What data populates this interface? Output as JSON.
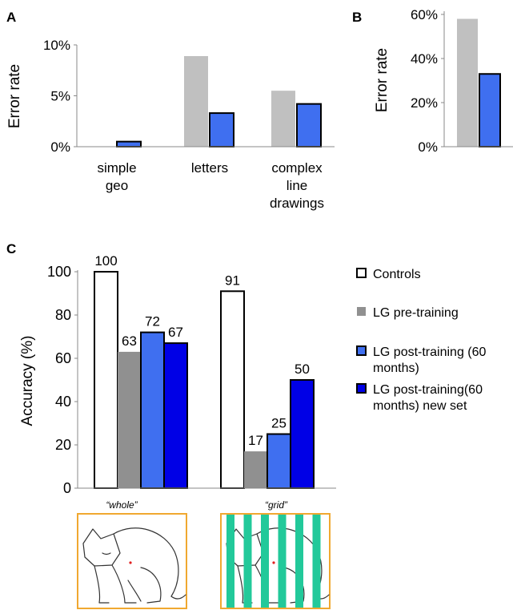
{
  "panels": {
    "a_letter": "A",
    "b_letter": "B",
    "c_letter": "C"
  },
  "images": {
    "whole_caption": "“whole”",
    "grid_caption": "“grid”"
  },
  "colors": {
    "pre_training_light": "#c0c0c0",
    "pre_training": "#909090",
    "post_training": "#3f6ff0",
    "post_training_new": "#0000e6",
    "controls": "#ffffff",
    "frame": "#f0a830",
    "stripes": "#22c99a"
  },
  "chart_data": [
    {
      "id": "A",
      "type": "bar",
      "ylabel": "Error rate",
      "ylim": [
        0,
        10
      ],
      "yticks": [
        "0%",
        "5%",
        "10%"
      ],
      "categories": [
        "simple geo",
        "letters",
        "complex line drawings"
      ],
      "category_lines": [
        [
          "simple",
          "geo"
        ],
        [
          "letters"
        ],
        [
          "complex",
          "line",
          "drawings"
        ]
      ],
      "series": [
        {
          "values": [
            0,
            8.9,
            5.5
          ]
        },
        {
          "values": [
            0.5,
            3.3,
            4.2
          ]
        }
      ]
    },
    {
      "id": "B",
      "type": "bar",
      "ylabel": "Error rate",
      "ylim": [
        0,
        60
      ],
      "yticks": [
        "0%",
        "20%",
        "40%",
        "60%"
      ],
      "categories": [
        ""
      ],
      "series": [
        {
          "values": [
            58
          ]
        },
        {
          "values": [
            33
          ]
        }
      ]
    },
    {
      "id": "C",
      "type": "bar",
      "ylabel": "Accuracy (%)",
      "ylim": [
        0,
        100
      ],
      "yticks": [
        "0",
        "20",
        "40",
        "60",
        "80",
        "100"
      ],
      "categories": [
        "whole",
        "grid"
      ],
      "series": [
        {
          "name": "Controls",
          "values": [
            100,
            91
          ]
        },
        {
          "name": "LG pre-training",
          "values": [
            63,
            17
          ]
        },
        {
          "name": "LG post-training (60 months)",
          "values": [
            72,
            25
          ]
        },
        {
          "name": "LG post-training(60 months) new set",
          "values": [
            67,
            50
          ]
        }
      ],
      "data_labels": [
        [
          "100",
          "63",
          "72",
          "67"
        ],
        [
          "91",
          "17",
          "25",
          "50"
        ]
      ],
      "legend": {
        "position": "right",
        "items": [
          {
            "lines": [
              "Controls"
            ]
          },
          {
            "lines": [
              "LG pre-training"
            ]
          },
          {
            "lines": [
              "LG post-training (60",
              "months)"
            ]
          },
          {
            "lines": [
              "LG post-training(60",
              "months) new set"
            ]
          }
        ]
      }
    }
  ]
}
